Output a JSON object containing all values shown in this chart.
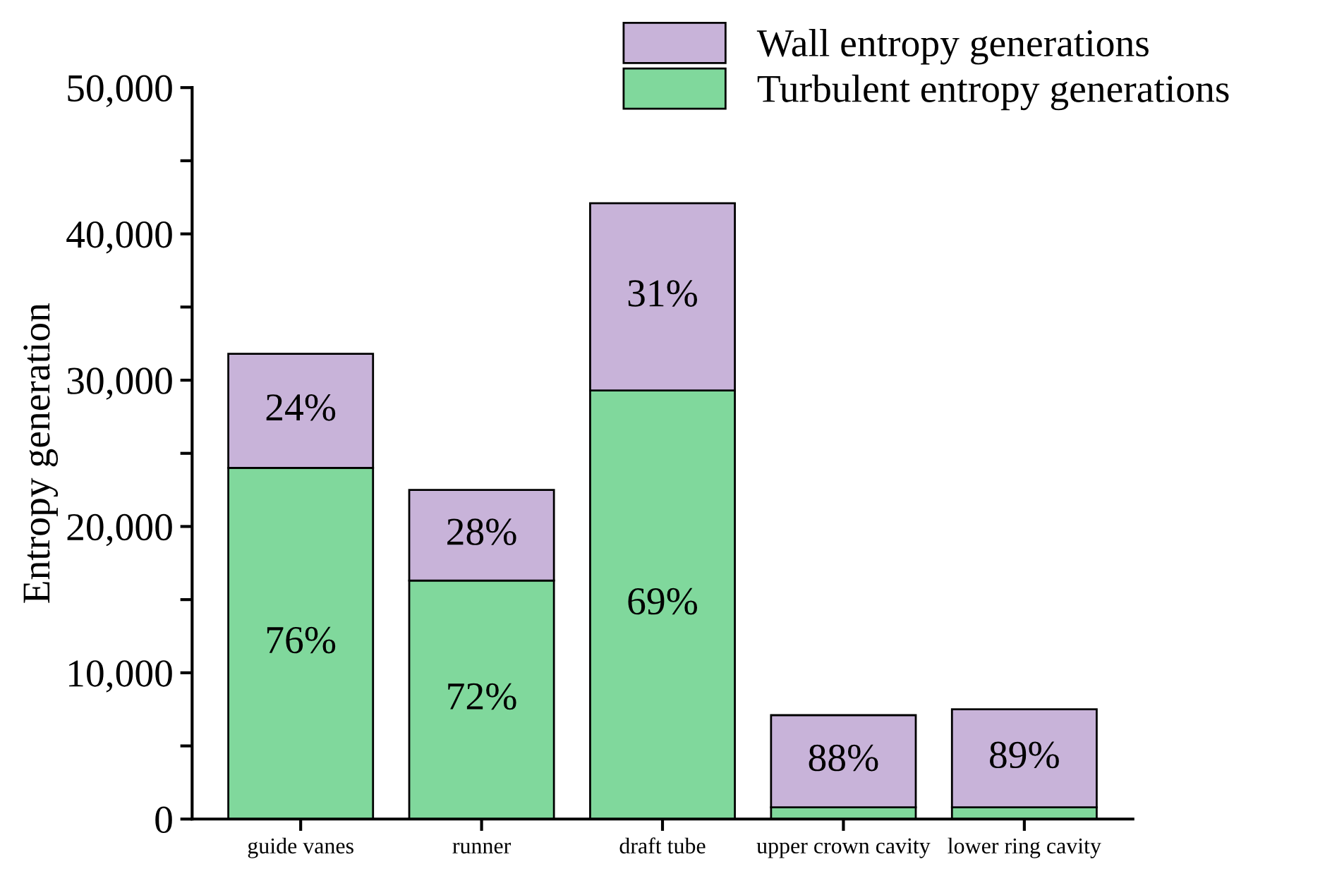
{
  "chart_data": {
    "type": "bar",
    "stacked": true,
    "ylabel": "Entropy generation",
    "categories": [
      "guide vanes",
      "runner",
      "draft tube",
      "upper crown cavity",
      "lower ring cavity"
    ],
    "series": [
      {
        "name": "Turbulent entropy generations",
        "color": "#80d89c",
        "values": [
          24000,
          16300,
          29300,
          800,
          800
        ]
      },
      {
        "name": "Wall entropy generations",
        "color": "#c8b3d9",
        "values": [
          7800,
          6200,
          12800,
          6300,
          6700
        ]
      }
    ],
    "annotations": [
      "76%",
      "72%",
      "69%",
      "24%",
      "28%",
      "31%",
      "88%",
      "89%"
    ],
    "ylim": [
      0,
      50000
    ],
    "yticks": [
      {
        "value": 0,
        "label": "0"
      },
      {
        "value": 5000,
        "label": null
      },
      {
        "value": 10000,
        "label": "10,000"
      },
      {
        "value": 15000,
        "label": null
      },
      {
        "value": 20000,
        "label": "20,000"
      },
      {
        "value": 25000,
        "label": null
      },
      {
        "value": 30000,
        "label": "30,000"
      },
      {
        "value": 35000,
        "label": null
      },
      {
        "value": 40000,
        "label": "40,000"
      },
      {
        "value": 45000,
        "label": null
      },
      {
        "value": 50000,
        "label": "50,000"
      }
    ],
    "grid": false,
    "legend": "top right"
  }
}
